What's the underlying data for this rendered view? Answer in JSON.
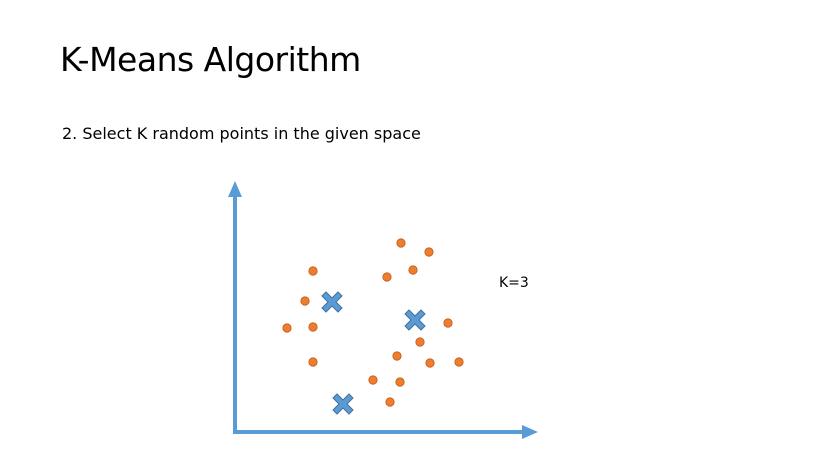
{
  "slide": {
    "title": "K-Means Algorithm",
    "subtitle": "2. Select K random points in the given space",
    "k_label": "K=3"
  },
  "colors": {
    "axis": "#5b9bd5",
    "point": "#ed7d31",
    "point_stroke": "#c55a11",
    "centroid": "#5b9bd5",
    "centroid_stroke": "#41719c"
  }
}
